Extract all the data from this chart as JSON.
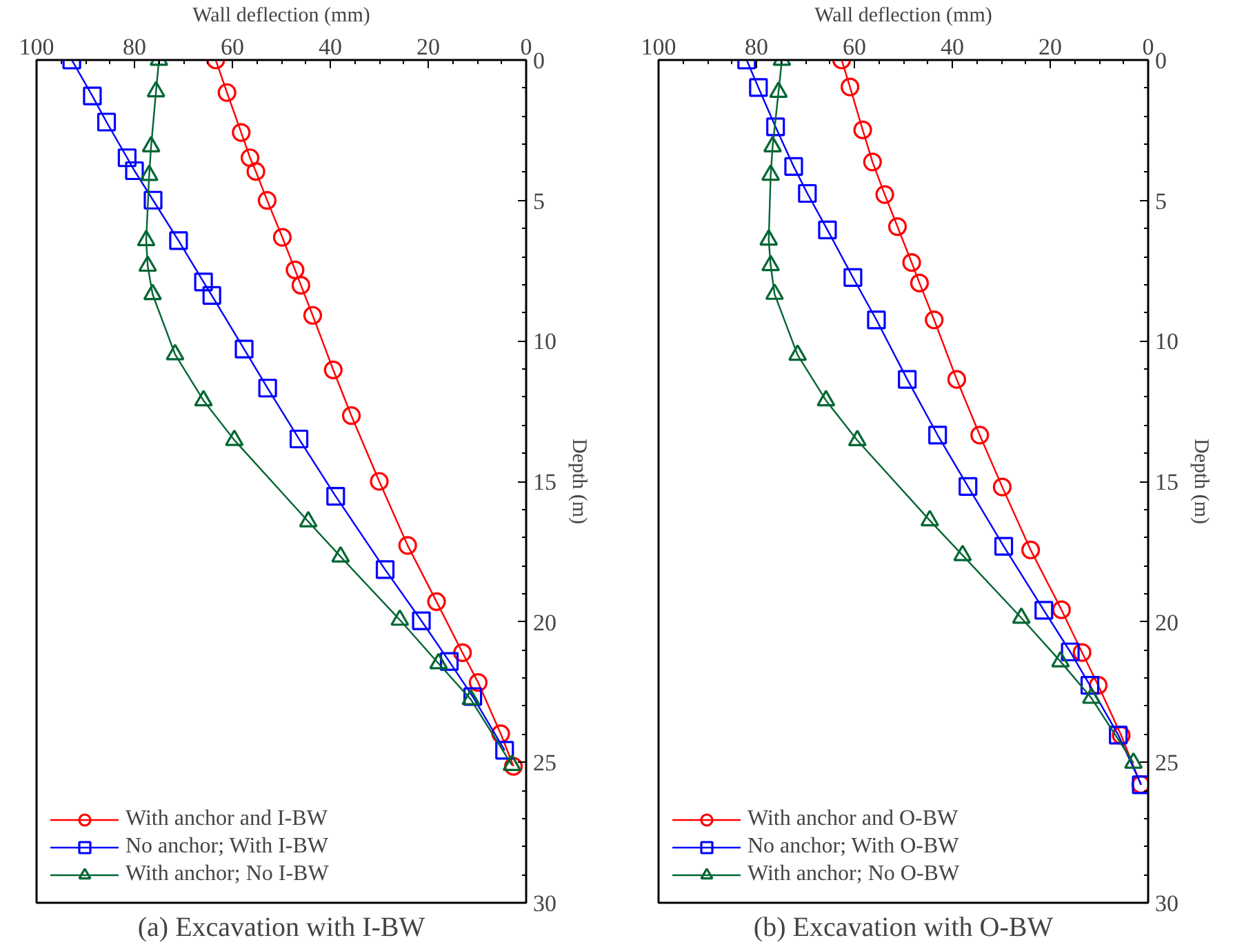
{
  "chart_data": [
    {
      "type": "line",
      "title": "(a) Excavation with I-BW",
      "xlabel": "Wall deflection (mm)",
      "ylabel": "Depth (m)",
      "xlim": [
        100,
        0
      ],
      "xticks": [
        100,
        80,
        60,
        40,
        20,
        0
      ],
      "ylim": [
        30,
        0
      ],
      "yticks": [
        0,
        5,
        10,
        15,
        20,
        25,
        30
      ],
      "grid": false,
      "legend": "bottom left",
      "series": [
        {
          "name": "With anchor and I-BW",
          "color": "#ff0000",
          "marker": "circle",
          "x": [
            63.4,
            61.1,
            58.2,
            56.4,
            55.2,
            52.9,
            49.8,
            47.2,
            46.0,
            43.6,
            39.4,
            35.7,
            30.0,
            24.2,
            18.3,
            13.0,
            9.8,
            5.2,
            2.6
          ],
          "values": [
            0,
            1.16,
            2.58,
            3.48,
            3.97,
            5.0,
            6.31,
            7.47,
            8.02,
            9.09,
            11.03,
            12.66,
            15.0,
            17.28,
            19.28,
            21.1,
            22.16,
            23.98,
            25.14
          ]
        },
        {
          "name": "No anchor; With I-BW",
          "color": "#0000ff",
          "marker": "square",
          "x": [
            92.8,
            88.6,
            85.7,
            81.5,
            80.0,
            76.2,
            71.0,
            65.9,
            64.2,
            57.6,
            52.8,
            46.4,
            38.9,
            28.8,
            21.4,
            15.7,
            10.9,
            4.4
          ],
          "values": [
            0,
            1.28,
            2.21,
            3.48,
            3.94,
            4.99,
            6.43,
            7.9,
            8.38,
            10.29,
            11.68,
            13.49,
            15.53,
            18.14,
            19.96,
            21.41,
            22.66,
            24.57
          ]
        },
        {
          "name": "With anchor; No I-BW",
          "color": "#006633",
          "marker": "triangle",
          "x": [
            75.0,
            75.6,
            76.6,
            77.0,
            77.6,
            77.3,
            76.3,
            71.7,
            65.9,
            59.6,
            44.5,
            37.9,
            25.8,
            17.9,
            11.3,
            2.9
          ],
          "values": [
            0,
            1.12,
            3.08,
            4.1,
            6.42,
            7.33,
            8.34,
            10.48,
            12.12,
            13.53,
            16.43,
            17.68,
            19.93,
            21.48,
            22.76,
            25.1
          ]
        }
      ]
    },
    {
      "type": "line",
      "title": "(b) Excavation with O-BW",
      "xlabel": "Wall deflection (mm)",
      "ylabel": "Depth (m)",
      "xlim": [
        100,
        0
      ],
      "xticks": [
        100,
        80,
        60,
        40,
        20,
        0
      ],
      "ylim": [
        30,
        0
      ],
      "yticks": [
        0,
        5,
        10,
        15,
        20,
        25,
        30
      ],
      "grid": false,
      "legend": "bottom left",
      "series": [
        {
          "name": "With anchor and O-BW",
          "color": "#ff0000",
          "marker": "circle",
          "x": [
            62.6,
            60.9,
            58.3,
            56.3,
            53.8,
            51.2,
            48.3,
            46.7,
            43.7,
            39.1,
            34.4,
            29.8,
            24.0,
            17.7,
            13.5,
            10.2,
            5.5,
            1.5
          ],
          "values": [
            0,
            0.96,
            2.49,
            3.63,
            4.79,
            5.93,
            7.21,
            7.94,
            9.25,
            11.37,
            13.35,
            15.2,
            17.44,
            19.57,
            21.09,
            22.26,
            24.04,
            25.79
          ]
        },
        {
          "name": "No anchor; With O-BW",
          "color": "#0000ff",
          "marker": "square",
          "x": [
            82.0,
            79.6,
            76.1,
            72.4,
            69.6,
            65.5,
            60.3,
            55.5,
            49.2,
            43.0,
            36.8,
            29.5,
            21.3,
            15.9,
            11.9,
            6.1,
            1.4
          ],
          "values": [
            0,
            0.98,
            2.38,
            3.79,
            4.75,
            6.05,
            7.74,
            9.25,
            11.37,
            13.35,
            15.18,
            17.31,
            19.59,
            21.07,
            22.26,
            24.03,
            25.8
          ]
        },
        {
          "name": "With anchor; No O-BW",
          "color": "#006633",
          "marker": "triangle",
          "x": [
            74.8,
            75.5,
            76.7,
            77.1,
            77.5,
            77.1,
            76.3,
            71.6,
            65.8,
            59.4,
            44.6,
            37.9,
            25.9,
            17.9,
            11.6,
            3.0
          ],
          "values": [
            0,
            1.14,
            3.08,
            4.09,
            6.4,
            7.31,
            8.33,
            10.5,
            12.12,
            13.54,
            16.39,
            17.63,
            19.86,
            21.41,
            22.71,
            25.02
          ]
        }
      ]
    }
  ]
}
